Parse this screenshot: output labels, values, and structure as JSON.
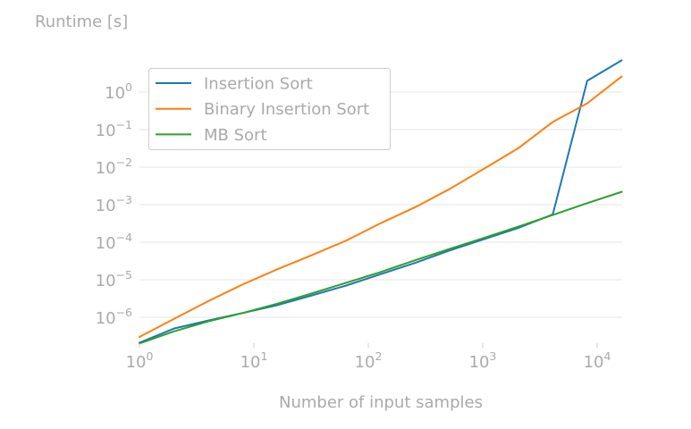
{
  "chart_data": {
    "type": "line",
    "title": "",
    "xlabel": "Number of input samples",
    "ylabel": "Runtime [s]",
    "xscale": "log",
    "yscale": "log",
    "xlim": [
      1,
      16384
    ],
    "ylim": [
      2e-07,
      10
    ],
    "grid": "horizontal",
    "legend_position": "upper-left",
    "x_ticks": [
      {
        "base": "10",
        "exp": "0"
      },
      {
        "base": "10",
        "exp": "1"
      },
      {
        "base": "10",
        "exp": "2"
      },
      {
        "base": "10",
        "exp": "3"
      },
      {
        "base": "10",
        "exp": "4"
      }
    ],
    "y_ticks": [
      {
        "base": "10",
        "exp": "0"
      },
      {
        "base": "10",
        "exp": "−1"
      },
      {
        "base": "10",
        "exp": "−2"
      },
      {
        "base": "10",
        "exp": "−3"
      },
      {
        "base": "10",
        "exp": "−4"
      },
      {
        "base": "10",
        "exp": "−5"
      },
      {
        "base": "10",
        "exp": "−6"
      }
    ],
    "x": [
      1,
      2,
      4,
      8,
      16,
      32,
      64,
      128,
      256,
      512,
      1024,
      2048,
      4096,
      8192,
      16384
    ],
    "series": [
      {
        "name": "Insertion Sort",
        "color": "#1f77b4",
        "values": [
          2.1e-07,
          5e-07,
          8.2e-07,
          1.3e-06,
          2.1e-06,
          3.8e-06,
          7e-06,
          1.4e-05,
          2.8e-05,
          6e-05,
          0.00012,
          0.00024,
          0.00055,
          2.0,
          7.0
        ]
      },
      {
        "name": "Binary Insertion Sort",
        "color": "#ff7f0e",
        "values": [
          3e-07,
          9e-07,
          2.7e-06,
          7.5e-06,
          1.9e-05,
          4.5e-05,
          0.00011,
          0.00032,
          0.00085,
          0.0026,
          0.009,
          0.032,
          0.16,
          0.5,
          2.6
        ]
      },
      {
        "name": "MB Sort",
        "color": "#2ca02c",
        "values": [
          2e-07,
          4.2e-07,
          7.8e-07,
          1.3e-06,
          2.3e-06,
          4.3e-06,
          8.3e-06,
          1.6e-05,
          3.3e-05,
          6.6e-05,
          0.00013,
          0.00026,
          0.00053,
          0.0011,
          0.0022
        ]
      }
    ]
  }
}
